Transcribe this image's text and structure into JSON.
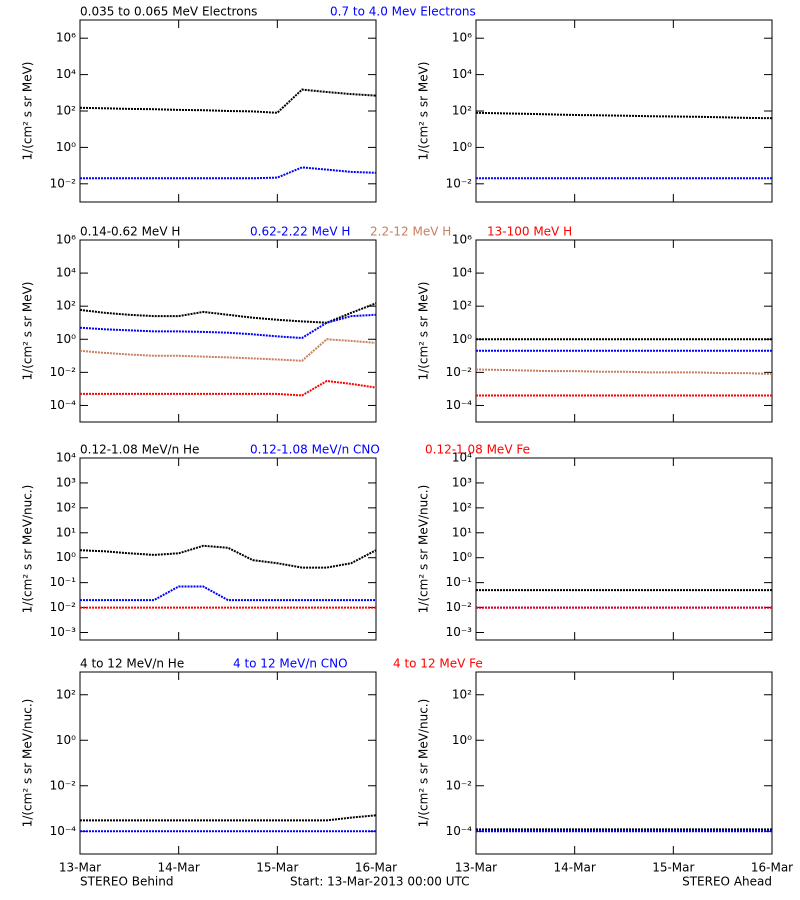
{
  "chart_data": [
    {
      "type": "line",
      "log_y": true,
      "ylabel": "1/(cm² s sr MeV)",
      "x": [
        0,
        0.25,
        0.5,
        0.75,
        1,
        1.25,
        1.5,
        1.75,
        2,
        2.25,
        2.5,
        2.75,
        3
      ],
      "xlim": [
        0,
        3
      ],
      "xticks": [
        0,
        1,
        2,
        3
      ],
      "ylim": [
        0.001,
        10000000
      ],
      "yticks": [
        {
          "value": 0.01,
          "label": "10⁻²"
        },
        {
          "value": 1,
          "label": "10⁰"
        },
        {
          "value": 100,
          "label": "10²"
        },
        {
          "value": 10000,
          "label": "10⁴"
        },
        {
          "value": 1000000,
          "label": "10⁶"
        }
      ],
      "series": [
        {
          "name": "0.035 to 0.065 MeV Electrons",
          "color": "#000000",
          "values": [
            150,
            140,
            130,
            125,
            115,
            110,
            100,
            95,
            80,
            1500,
            1100,
            850,
            700
          ]
        },
        {
          "name": "0.7 to 4.0 Mev Electrons",
          "color": "#0000ff",
          "values": [
            0.02,
            0.02,
            0.02,
            0.02,
            0.02,
            0.02,
            0.02,
            0.02,
            0.022,
            0.08,
            0.06,
            0.045,
            0.04
          ]
        }
      ]
    },
    {
      "type": "line",
      "log_y": true,
      "ylabel": "1/(cm² s sr MeV)",
      "x": [
        0,
        0.25,
        0.5,
        0.75,
        1,
        1.25,
        1.5,
        1.75,
        2,
        2.25,
        2.5,
        2.75,
        3
      ],
      "xlim": [
        0,
        3
      ],
      "xticks": [
        0,
        1,
        2,
        3
      ],
      "ylim": [
        0.001,
        10000000
      ],
      "yticks": [
        {
          "value": 0.01,
          "label": "10⁻²"
        },
        {
          "value": 1,
          "label": "10⁰"
        },
        {
          "value": 100,
          "label": "10²"
        },
        {
          "value": 10000,
          "label": "10⁴"
        },
        {
          "value": 1000000,
          "label": "10⁶"
        }
      ],
      "series": [
        {
          "color": "#000000",
          "values": [
            80,
            75,
            70,
            65,
            60,
            58,
            55,
            52,
            50,
            48,
            45,
            42,
            40
          ]
        },
        {
          "color": "#0000ff",
          "values": [
            0.02,
            0.02,
            0.02,
            0.02,
            0.02,
            0.02,
            0.02,
            0.02,
            0.02,
            0.02,
            0.02,
            0.02,
            0.02
          ]
        }
      ]
    },
    {
      "type": "line",
      "log_y": true,
      "ylabel": "1/(cm² s sr MeV)",
      "x": [
        0,
        0.25,
        0.5,
        0.75,
        1,
        1.25,
        1.5,
        1.75,
        2,
        2.25,
        2.5,
        2.75,
        3
      ],
      "xlim": [
        0,
        3
      ],
      "xticks": [
        0,
        1,
        2,
        3
      ],
      "ylim": [
        1e-05,
        1000000
      ],
      "yticks": [
        {
          "value": 0.0001,
          "label": "10⁻⁴"
        },
        {
          "value": 0.01,
          "label": "10⁻²"
        },
        {
          "value": 1,
          "label": "10⁰"
        },
        {
          "value": 100,
          "label": "10²"
        },
        {
          "value": 10000,
          "label": "10⁴"
        },
        {
          "value": 1000000,
          "label": "10⁶"
        }
      ],
      "series": [
        {
          "name": "0.14-0.62 MeV H",
          "color": "#000000",
          "values": [
            60,
            40,
            30,
            25,
            25,
            45,
            30,
            20,
            15,
            12,
            10,
            40,
            150
          ]
        },
        {
          "name": "0.62-2.22 MeV H",
          "color": "#0000ff",
          "values": [
            5,
            4,
            3.5,
            3,
            3,
            2.8,
            2.5,
            2,
            1.5,
            1.2,
            10,
            25,
            30
          ]
        },
        {
          "name": "2.2-12 MeV H",
          "color": "#c87f5f",
          "values": [
            0.2,
            0.15,
            0.12,
            0.1,
            0.1,
            0.09,
            0.08,
            0.07,
            0.06,
            0.05,
            1,
            0.8,
            0.6
          ]
        },
        {
          "name": "13-100 MeV H",
          "color": "#ff0000",
          "values": [
            0.0005,
            0.0005,
            0.0005,
            0.0005,
            0.0005,
            0.0005,
            0.0005,
            0.0005,
            0.0005,
            0.0004,
            0.003,
            0.002,
            0.0012
          ]
        }
      ]
    },
    {
      "type": "line",
      "log_y": true,
      "ylabel": "1/(cm² s sr MeV)",
      "x": [
        0,
        0.25,
        0.5,
        0.75,
        1,
        1.25,
        1.5,
        1.75,
        2,
        2.25,
        2.5,
        2.75,
        3
      ],
      "xlim": [
        0,
        3
      ],
      "xticks": [
        0,
        1,
        2,
        3
      ],
      "ylim": [
        1e-05,
        1000000
      ],
      "yticks": [
        {
          "value": 0.0001,
          "label": "10⁻⁴"
        },
        {
          "value": 0.01,
          "label": "10⁻²"
        },
        {
          "value": 1,
          "label": "10⁰"
        },
        {
          "value": 100,
          "label": "10²"
        },
        {
          "value": 10000,
          "label": "10⁴"
        },
        {
          "value": 1000000,
          "label": "10⁶"
        }
      ],
      "series": [
        {
          "color": "#000000",
          "values": [
            1,
            1,
            1,
            1,
            1,
            1,
            1,
            1,
            1,
            1,
            1,
            1,
            1
          ]
        },
        {
          "color": "#0000ff",
          "values": [
            0.2,
            0.2,
            0.2,
            0.2,
            0.2,
            0.2,
            0.2,
            0.2,
            0.2,
            0.2,
            0.2,
            0.2,
            0.2
          ]
        },
        {
          "color": "#c87f5f",
          "values": [
            0.015,
            0.014,
            0.013,
            0.012,
            0.012,
            0.011,
            0.011,
            0.01,
            0.01,
            0.01,
            0.009,
            0.009,
            0.008
          ]
        },
        {
          "color": "#ff0000",
          "values": [
            0.0004,
            0.0004,
            0.0004,
            0.0004,
            0.0004,
            0.0004,
            0.0004,
            0.0004,
            0.0004,
            0.0004,
            0.0004,
            0.0004,
            0.0004
          ]
        }
      ]
    },
    {
      "type": "line",
      "log_y": true,
      "ylabel": "1/(cm² s sr MeV/nuc.)",
      "x": [
        0,
        0.25,
        0.5,
        0.75,
        1,
        1.25,
        1.5,
        1.75,
        2,
        2.25,
        2.5,
        2.75,
        3
      ],
      "xlim": [
        0,
        3
      ],
      "xticks": [
        0,
        1,
        2,
        3
      ],
      "ylim": [
        0.0005,
        10000
      ],
      "yticks": [
        {
          "value": 0.001,
          "label": "10⁻³"
        },
        {
          "value": 0.01,
          "label": "10⁻²"
        },
        {
          "value": 0.1,
          "label": "10⁻¹"
        },
        {
          "value": 1,
          "label": "10⁰"
        },
        {
          "value": 10,
          "label": "10¹"
        },
        {
          "value": 100,
          "label": "10²"
        },
        {
          "value": 1000,
          "label": "10³"
        },
        {
          "value": 10000,
          "label": "10⁴"
        }
      ],
      "series": [
        {
          "name": "0.12-1.08 MeV/n He",
          "color": "#000000",
          "values": [
            2,
            1.8,
            1.5,
            1.3,
            1.5,
            3,
            2.5,
            0.8,
            0.6,
            0.4,
            0.4,
            0.6,
            2
          ]
        },
        {
          "name": "0.12-1.08 MeV/n CNO",
          "color": "#0000ff",
          "values": [
            0.02,
            0.02,
            0.02,
            0.02,
            0.07,
            0.07,
            0.02,
            0.02,
            0.02,
            0.02,
            0.02,
            0.02,
            0.02
          ]
        },
        {
          "name": "0.12-1.08 MeV Fe",
          "color": "#ff0000",
          "values": [
            0.01,
            0.01,
            0.01,
            0.01,
            0.01,
            0.01,
            0.01,
            0.01,
            0.01,
            0.01,
            0.01,
            0.01,
            0.01
          ]
        }
      ]
    },
    {
      "type": "line",
      "log_y": true,
      "ylabel": "1/(cm² s sr MeV/nuc.)",
      "x": [
        0,
        0.25,
        0.5,
        0.75,
        1,
        1.25,
        1.5,
        1.75,
        2,
        2.25,
        2.5,
        2.75,
        3
      ],
      "xlim": [
        0,
        3
      ],
      "xticks": [
        0,
        1,
        2,
        3
      ],
      "ylim": [
        0.0005,
        10000
      ],
      "yticks": [
        {
          "value": 0.001,
          "label": "10⁻³"
        },
        {
          "value": 0.01,
          "label": "10⁻²"
        },
        {
          "value": 0.1,
          "label": "10⁻¹"
        },
        {
          "value": 1,
          "label": "10⁰"
        },
        {
          "value": 10,
          "label": "10¹"
        },
        {
          "value": 100,
          "label": "10²"
        },
        {
          "value": 1000,
          "label": "10³"
        },
        {
          "value": 10000,
          "label": "10⁴"
        }
      ],
      "series": [
        {
          "color": "#000000",
          "values": [
            0.05,
            0.05,
            0.05,
            0.05,
            0.05,
            0.05,
            0.05,
            0.05,
            0.05,
            0.05,
            0.05,
            0.05,
            0.05
          ]
        },
        {
          "color": "#0000ff",
          "values": [
            0.01,
            0.01,
            0.01,
            0.01,
            0.01,
            0.01,
            0.01,
            0.01,
            0.01,
            0.01,
            0.01,
            0.01,
            0.01
          ]
        },
        {
          "color": "#ff0000",
          "values": [
            0.01,
            0.01,
            0.01,
            0.01,
            0.01,
            0.01,
            0.01,
            0.01,
            0.01,
            0.01,
            0.01,
            0.01,
            0.01
          ]
        }
      ]
    },
    {
      "type": "line",
      "log_y": true,
      "ylabel": "1/(cm² s sr MeV/nuc.)",
      "x": [
        0,
        0.25,
        0.5,
        0.75,
        1,
        1.25,
        1.5,
        1.75,
        2,
        2.25,
        2.5,
        2.75,
        3
      ],
      "xlim": [
        0,
        3
      ],
      "xticks": [
        {
          "value": 0,
          "label": "13-Mar"
        },
        {
          "value": 1,
          "label": "14-Mar"
        },
        {
          "value": 2,
          "label": "15-Mar"
        },
        {
          "value": 3,
          "label": "16-Mar"
        }
      ],
      "ylim": [
        1e-05,
        1000
      ],
      "yticks": [
        {
          "value": 0.0001,
          "label": "10⁻⁴"
        },
        {
          "value": 0.01,
          "label": "10⁻²"
        },
        {
          "value": 1,
          "label": "10⁰"
        },
        {
          "value": 100,
          "label": "10²"
        }
      ],
      "series": [
        {
          "name": "4 to 12 MeV/n He",
          "color": "#000000",
          "values": [
            0.0003,
            0.0003,
            0.0003,
            0.0003,
            0.0003,
            0.0003,
            0.0003,
            0.0003,
            0.0003,
            0.0003,
            0.0003,
            0.0004,
            0.0005
          ]
        },
        {
          "name": "4 to 12 MeV/n CNO",
          "color": "#0000ff",
          "values": [
            0.0001,
            0.0001,
            0.0001,
            0.0001,
            0.0001,
            0.0001,
            0.0001,
            0.0001,
            0.0001,
            0.0001,
            0.0001,
            0.0001,
            0.0001
          ]
        },
        {
          "name": "4 to 12 MeV Fe",
          "color": "#ff0000",
          "values": [
            null,
            null,
            null,
            null,
            null,
            null,
            null,
            null,
            null,
            null,
            null,
            null,
            null
          ]
        }
      ]
    },
    {
      "type": "line",
      "log_y": true,
      "ylabel": "1/(cm² s sr MeV/nuc.)",
      "x": [
        0,
        0.25,
        0.5,
        0.75,
        1,
        1.25,
        1.5,
        1.75,
        2,
        2.25,
        2.5,
        2.75,
        3
      ],
      "xlim": [
        0,
        3
      ],
      "xticks": [
        {
          "value": 0,
          "label": "13-Mar"
        },
        {
          "value": 1,
          "label": "14-Mar"
        },
        {
          "value": 2,
          "label": "15-Mar"
        },
        {
          "value": 3,
          "label": "16-Mar"
        }
      ],
      "ylim": [
        1e-05,
        1000
      ],
      "yticks": [
        {
          "value": 0.0001,
          "label": "10⁻⁴"
        },
        {
          "value": 0.01,
          "label": "10⁻²"
        },
        {
          "value": 1,
          "label": "10⁰"
        },
        {
          "value": 100,
          "label": "10²"
        }
      ],
      "series": [
        {
          "color": "#000000",
          "values": [
            0.00012,
            0.00012,
            0.00012,
            0.00012,
            0.00012,
            0.00012,
            0.00012,
            0.00012,
            0.00012,
            0.00012,
            0.00012,
            0.00012,
            0.00012
          ]
        },
        {
          "color": "#0000ff",
          "values": [
            0.0001,
            0.0001,
            0.0001,
            0.0001,
            0.0001,
            0.0001,
            0.0001,
            0.0001,
            0.0001,
            0.0001,
            0.0001,
            0.0001,
            0.0001
          ]
        }
      ]
    }
  ],
  "footer": {
    "left": "STEREO Behind",
    "center": "Start: 13-Mar-2013 00:00 UTC",
    "right": "STEREO Ahead"
  }
}
